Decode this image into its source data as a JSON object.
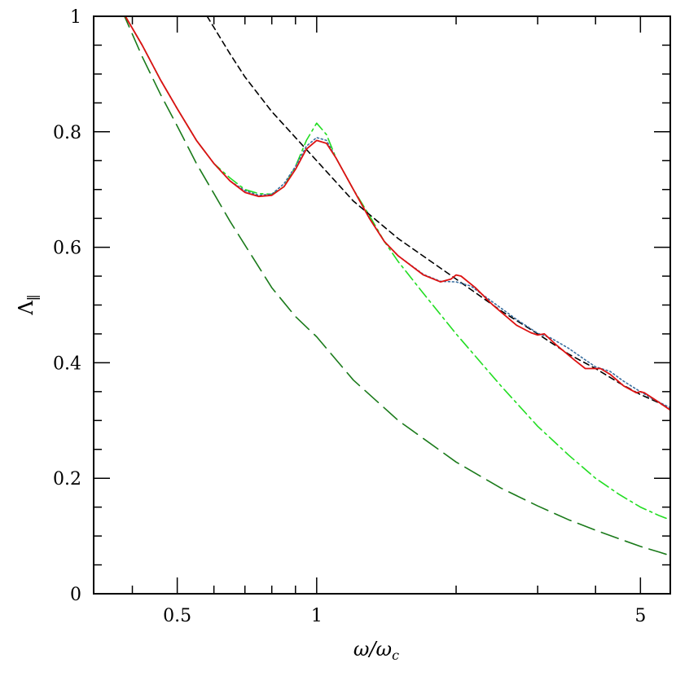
{
  "chart_data": {
    "type": "line",
    "xlabel": "ω/ω",
    "xlabel_sub": "c",
    "ylabel": "Λ",
    "ylabel_sub": "‖",
    "x_scale": "log",
    "xlim": [
      0.33,
      5.8
    ],
    "ylim": [
      0,
      1
    ],
    "x_ticks": [
      {
        "value": 0.5,
        "label": "0.5"
      },
      {
        "value": 1,
        "label": "1"
      },
      {
        "value": 5,
        "label": "5"
      }
    ],
    "y_ticks": [
      {
        "value": 0,
        "label": "0"
      },
      {
        "value": 0.2,
        "label": "0.2"
      },
      {
        "value": 0.4,
        "label": "0.4"
      },
      {
        "value": 0.6,
        "label": "0.6"
      },
      {
        "value": 0.8,
        "label": "0.8"
      },
      {
        "value": 1,
        "label": "1"
      }
    ],
    "grid": false,
    "legend": "none",
    "series": [
      {
        "color": "#1a7a1a",
        "dash": "long-dash",
        "x": [
          0.38,
          0.42,
          0.46,
          0.5,
          0.55,
          0.6,
          0.65,
          0.7,
          0.8,
          0.9,
          1.0,
          1.2,
          1.5,
          2.0,
          2.5,
          3.0,
          3.5,
          4.0,
          4.5,
          5.0,
          5.5,
          5.8
        ],
        "y": [
          1.01,
          0.93,
          0.865,
          0.81,
          0.745,
          0.693,
          0.645,
          0.604,
          0.53,
          0.48,
          0.445,
          0.37,
          0.3,
          0.228,
          0.183,
          0.152,
          0.128,
          0.11,
          0.095,
          0.082,
          0.072,
          0.066
        ]
      },
      {
        "color": "#22dd22",
        "dash": "dash-dot",
        "x": [
          0.38,
          0.42,
          0.46,
          0.5,
          0.55,
          0.6,
          0.65,
          0.7,
          0.75,
          0.8,
          0.85,
          0.9,
          0.95,
          1.0,
          1.05,
          1.1,
          1.2,
          1.3,
          1.4,
          1.5,
          1.7,
          2.0,
          2.5,
          3.0,
          3.5,
          4.0,
          4.5,
          5.0,
          5.5,
          5.8
        ],
        "y": [
          1.01,
          0.95,
          0.89,
          0.84,
          0.785,
          0.745,
          0.72,
          0.7,
          0.693,
          0.692,
          0.705,
          0.74,
          0.785,
          0.815,
          0.795,
          0.755,
          0.7,
          0.655,
          0.61,
          0.575,
          0.52,
          0.45,
          0.36,
          0.29,
          0.24,
          0.2,
          0.172,
          0.15,
          0.135,
          0.128
        ]
      },
      {
        "color": "#000000",
        "dash": "short-dash",
        "x": [
          0.58,
          0.65,
          0.7,
          0.8,
          0.9,
          1.0,
          1.2,
          1.5,
          2.0,
          2.5,
          3.0,
          3.5,
          4.0,
          4.5,
          5.0,
          5.5,
          5.8
        ],
        "y": [
          1.0,
          0.935,
          0.895,
          0.835,
          0.79,
          0.75,
          0.68,
          0.615,
          0.545,
          0.49,
          0.45,
          0.415,
          0.39,
          0.365,
          0.345,
          0.33,
          0.32
        ]
      },
      {
        "color": "#3a6fa0",
        "dash": "dotted",
        "x": [
          0.38,
          0.42,
          0.46,
          0.5,
          0.55,
          0.6,
          0.65,
          0.7,
          0.75,
          0.8,
          0.85,
          0.9,
          0.95,
          1.0,
          1.05,
          1.1,
          1.2,
          1.3,
          1.4,
          1.5,
          1.7,
          1.85,
          2.0,
          2.15,
          2.4,
          2.7,
          3.0,
          3.2,
          3.5,
          3.8,
          4.0,
          4.3,
          4.6,
          5.0,
          5.3,
          5.8
        ],
        "y": [
          1.01,
          0.95,
          0.89,
          0.84,
          0.785,
          0.745,
          0.715,
          0.698,
          0.69,
          0.692,
          0.71,
          0.74,
          0.775,
          0.79,
          0.785,
          0.755,
          0.7,
          0.65,
          0.61,
          0.585,
          0.553,
          0.541,
          0.54,
          0.533,
          0.505,
          0.475,
          0.451,
          0.443,
          0.425,
          0.405,
          0.393,
          0.385,
          0.368,
          0.35,
          0.338,
          0.322
        ]
      },
      {
        "color": "#dd1111",
        "dash": "solid",
        "x": [
          0.38,
          0.42,
          0.46,
          0.5,
          0.55,
          0.6,
          0.65,
          0.7,
          0.75,
          0.8,
          0.85,
          0.9,
          0.95,
          1.0,
          1.05,
          1.1,
          1.2,
          1.3,
          1.4,
          1.5,
          1.7,
          1.85,
          1.95,
          2.0,
          2.05,
          2.2,
          2.4,
          2.7,
          2.9,
          3.0,
          3.1,
          3.3,
          3.6,
          3.8,
          4.0,
          4.1,
          4.3,
          4.6,
          4.9,
          5.0,
          5.1,
          5.4,
          5.8
        ],
        "y": [
          1.01,
          0.95,
          0.89,
          0.84,
          0.785,
          0.745,
          0.715,
          0.695,
          0.688,
          0.69,
          0.705,
          0.735,
          0.77,
          0.785,
          0.78,
          0.755,
          0.7,
          0.65,
          0.61,
          0.585,
          0.552,
          0.54,
          0.545,
          0.552,
          0.55,
          0.53,
          0.5,
          0.465,
          0.452,
          0.448,
          0.45,
          0.43,
          0.405,
          0.39,
          0.39,
          0.39,
          0.38,
          0.36,
          0.348,
          0.35,
          0.348,
          0.335,
          0.318
        ]
      }
    ]
  }
}
